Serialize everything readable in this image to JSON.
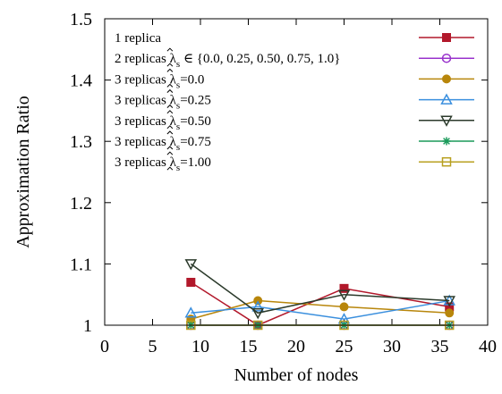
{
  "chart_data": {
    "type": "line",
    "xlabel": "Number of nodes",
    "ylabel": "Approximation Ratio",
    "xlim": [
      0,
      40
    ],
    "ylim": [
      1,
      1.5
    ],
    "xticks": [
      0,
      5,
      10,
      15,
      20,
      25,
      30,
      35,
      40
    ],
    "yticks": [
      1,
      1.1,
      1.2,
      1.3,
      1.4,
      1.5
    ],
    "xtick_labels": [
      "0",
      "5",
      "10",
      "15",
      "20",
      "25",
      "30",
      "35",
      "40"
    ],
    "ytick_labels": [
      "1",
      "1.1",
      "1.2",
      "1.3",
      "1.4",
      "1.5"
    ],
    "grid": false,
    "legend_position": "top-right",
    "x": [
      9,
      16,
      25,
      36
    ],
    "series": [
      {
        "name": "1 replica",
        "color": "#b2182b",
        "marker": "square-filled",
        "values": [
          1.07,
          1.0,
          1.06,
          1.03
        ]
      },
      {
        "name": "2 replicas λ̂ₛ ∈ {0.0, 0.25, 0.50, 0.75, 1.0}",
        "legend": {
          "prefix": "2 replicas λ",
          "sub": "s",
          "suffix": " ∈ {0.0, 0.25, 0.50, 0.75, 1.0}",
          "hat": true
        },
        "color": "#9933cc",
        "marker": "circle-open",
        "values": [
          1.0,
          1.0,
          1.0,
          1.0
        ]
      },
      {
        "name": "3 replicas λ̂ₛ=0.0",
        "legend": {
          "prefix": "3 replicas λ",
          "sub": "s",
          "suffix": "=0.0",
          "hat": true
        },
        "color": "#b8860b",
        "marker": "circle-filled",
        "values": [
          1.01,
          1.04,
          1.03,
          1.02
        ]
      },
      {
        "name": "3 replicas λ̂ₛ=0.25",
        "legend": {
          "prefix": "3 replicas λ",
          "sub": "s",
          "suffix": "=0.25",
          "hat": true
        },
        "color": "#3a8fde",
        "marker": "triangle-up-open",
        "values": [
          1.02,
          1.03,
          1.01,
          1.04
        ]
      },
      {
        "name": "3 replicas λ̂ₛ=0.50",
        "legend": {
          "prefix": "3 replicas λ",
          "sub": "s",
          "suffix": "=0.50",
          "hat": true
        },
        "color": "#2b3a2b",
        "marker": "triangle-down-open",
        "values": [
          1.1,
          1.02,
          1.05,
          1.04
        ]
      },
      {
        "name": "3 replicas λ̂ₛ=0.75",
        "legend": {
          "prefix": "3 replicas λ",
          "sub": "s",
          "suffix": "=0.75",
          "hat": true
        },
        "color": "#1a9a5a",
        "marker": "star",
        "values": [
          1.0,
          1.0,
          1.0,
          1.0
        ]
      },
      {
        "name": "3 replicas λ̂ₛ=1.00",
        "legend": {
          "prefix": "3 replicas λ",
          "sub": "s",
          "suffix": "=1.00",
          "hat": true
        },
        "color": "#b8a020",
        "marker": "square-open",
        "values": [
          1.0,
          1.0,
          1.0,
          1.0
        ]
      }
    ],
    "legend_first": "1 replica"
  }
}
